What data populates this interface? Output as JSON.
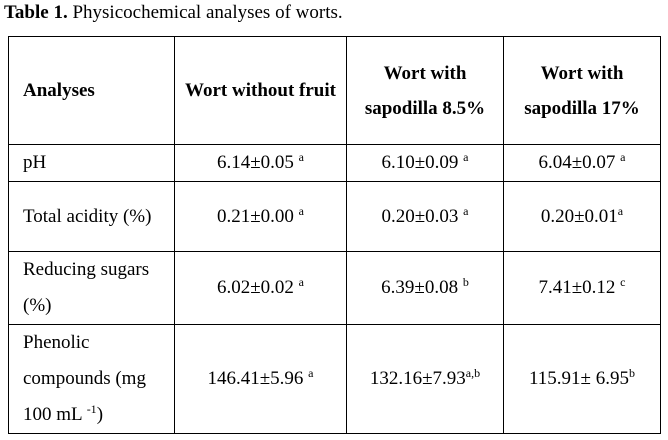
{
  "caption": {
    "label": "Table 1.",
    "text": " Physicochemical analyses of worts."
  },
  "table": {
    "headers": [
      "Analyses",
      "Wort without fruit",
      "Wort with sapodilla 8.5%",
      "Wort with sapodilla 17%"
    ],
    "rows": [
      {
        "label": "pH",
        "cells": [
          {
            "value": "6.14±0.05",
            "sup": "a"
          },
          {
            "value": "6.10±0.09",
            "sup": "a"
          },
          {
            "value": "6.04±0.07",
            "sup": "a"
          }
        ]
      },
      {
        "label": "Total acidity (%)",
        "cells": [
          {
            "value": "0.21±0.00",
            "sup": "a"
          },
          {
            "value": "0.20±0.03",
            "sup": "a"
          },
          {
            "value": "0.20±0.01",
            "sup": "a"
          }
        ]
      },
      {
        "label": "Reducing sugars (%)",
        "cells": [
          {
            "value": "6.02±0.02",
            "sup": "a"
          },
          {
            "value": "6.39±0.08",
            "sup": "b"
          },
          {
            "value": "7.41±0.12",
            "sup": "c"
          }
        ]
      },
      {
        "label": "Phenolic compounds (mg 100 mL",
        "label_sup": "-1",
        "label_suffix": ")",
        "cells": [
          {
            "value": "146.41±5.96",
            "sup": "a"
          },
          {
            "value": "132.16±7.93",
            "sup": "a,b"
          },
          {
            "value": "115.91± 6.95",
            "sup": "b"
          }
        ]
      }
    ]
  }
}
